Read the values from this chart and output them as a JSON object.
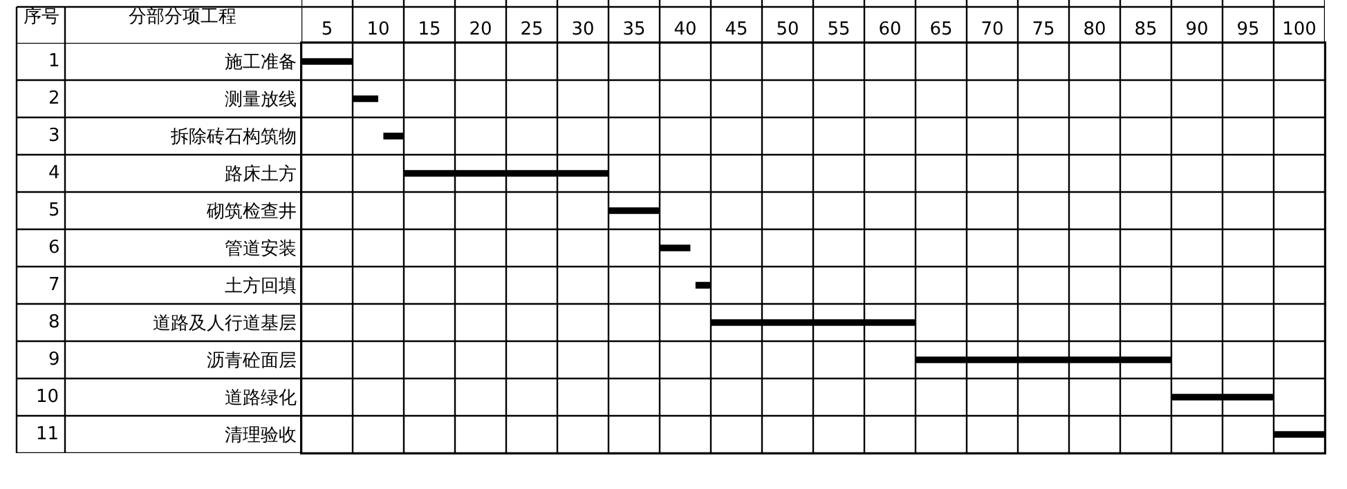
{
  "chart_data": {
    "type": "bar",
    "orientation": "horizontal",
    "ylabel": "分部分项工程",
    "categories": [
      "施工准备",
      "测量放线",
      "拆除砖石构筑物",
      "路床土方",
      "砌筑检查井",
      "管道安装",
      "土方回填",
      "道路及人行道基层",
      "沥青砼面层",
      "道路绿化",
      "清理验收"
    ],
    "base": [
      2.5,
      7.5,
      10.5,
      12.5,
      32.5,
      37.5,
      41,
      42.5,
      62.5,
      87.5,
      97.5
    ],
    "values": [
      5,
      2.5,
      2,
      20,
      5,
      3,
      1.5,
      20,
      25,
      10,
      5
    ],
    "color": "#000000",
    "xlim": [
      2.5,
      102.5
    ],
    "xticks": [
      {
        "value": 2.5,
        "label": null
      },
      5,
      {
        "value": 7.5,
        "label": null
      },
      10,
      {
        "value": 12.5,
        "label": null
      },
      15,
      {
        "value": 17.5,
        "label": null
      },
      20,
      {
        "value": 22.5,
        "label": null
      },
      25,
      {
        "value": 27.5,
        "label": null
      },
      30,
      {
        "value": 32.5,
        "label": null
      },
      35,
      {
        "value": 37.5,
        "label": null
      },
      40,
      {
        "value": 42.5,
        "label": null
      },
      45,
      {
        "value": 47.5,
        "label": null
      },
      50,
      {
        "value": 52.5,
        "label": null
      },
      55,
      {
        "value": 57.5,
        "label": null
      },
      60,
      {
        "value": 62.5,
        "label": null
      },
      65,
      {
        "value": 67.5,
        "label": null
      },
      70,
      {
        "value": 72.5,
        "label": null
      },
      75,
      {
        "value": 77.5,
        "label": null
      },
      80,
      {
        "value": 82.5,
        "label": null
      },
      85,
      {
        "value": 87.5,
        "label": null
      },
      90,
      {
        "value": 92.5,
        "label": null
      },
      95,
      {
        "value": 97.5,
        "label": null
      },
      100,
      {
        "value": 102.5,
        "label": null
      }
    ],
    "grid": "x",
    "annotations": [
      "序号",
      "1",
      "2",
      "3",
      "4",
      "5",
      "6",
      "7",
      "8",
      "9",
      "10",
      "11"
    ]
  }
}
